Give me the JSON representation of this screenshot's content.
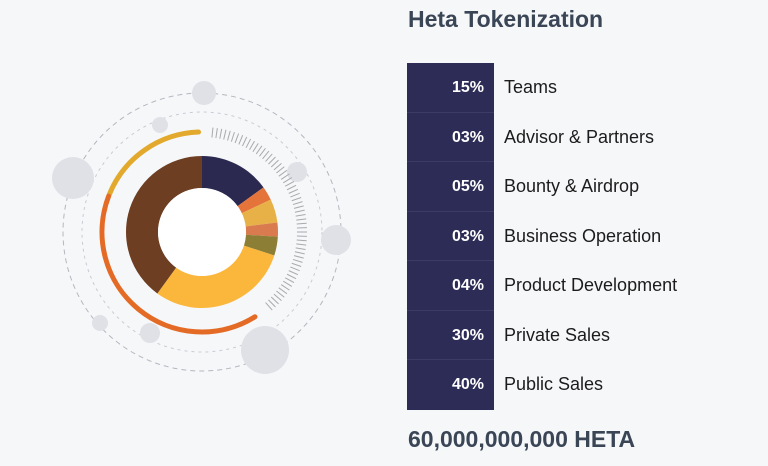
{
  "title": "Heta Tokenization",
  "total": "60,000,000,000 HETA",
  "colors": {
    "legend_bg": "#2d2c56",
    "text_dark": "#3a4556",
    "arc_gold": "#e2a92c",
    "arc_orange": "#e46b26",
    "bubble": "#dfe1e7"
  },
  "legend": [
    {
      "value": "15%",
      "label": "Teams"
    },
    {
      "value": "03%",
      "label": "Advisor & Partners"
    },
    {
      "value": "05%",
      "label": "Bounty & Airdrop"
    },
    {
      "value": "03%",
      "label": "Business Operation"
    },
    {
      "value": "04%",
      "label": "Product Development"
    },
    {
      "value": "30%",
      "label": "Private Sales"
    },
    {
      "value": "40%",
      "label": "Public Sales"
    }
  ],
  "chart_data": {
    "type": "pie",
    "donut": true,
    "categories": [
      "Teams",
      "Advisor & Partners",
      "Bounty & Airdrop",
      "Business Operation",
      "Product Development",
      "Private Sales",
      "Public Sales"
    ],
    "values": [
      15,
      3,
      5,
      3,
      4,
      30,
      40
    ],
    "colors": [
      "#2c2950",
      "#e5743a",
      "#e8b148",
      "#d97a4f",
      "#8c7e35",
      "#fbb73c",
      "#6e3e22"
    ]
  }
}
